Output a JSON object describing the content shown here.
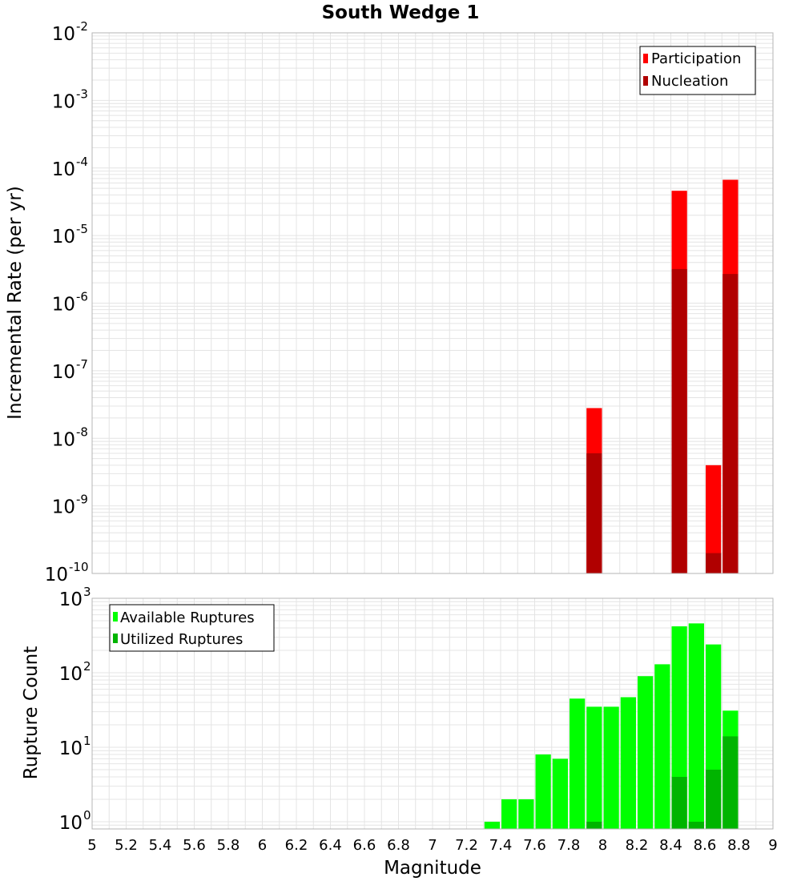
{
  "colors": {
    "participation": "#ff0000",
    "nucleation": "#b00000",
    "available": "#00ff00",
    "utilized": "#00b400",
    "grid": "#e4e4e4",
    "frame": "#b4b4b4"
  },
  "chart_data": [
    {
      "type": "bar",
      "subtype": "overlaid-log-histogram",
      "title": "South Wedge 1",
      "xlabel": "Magnitude",
      "ylabel": "Incremental Rate (per yr)",
      "xlim": [
        5,
        9
      ],
      "ylim": [
        1e-10,
        0.01
      ],
      "yscale": "log",
      "bin_width": 0.1,
      "yticks": [
        {
          "base": "10",
          "exp": "-10",
          "value": 1e-10
        },
        {
          "base": "10",
          "exp": "-9",
          "value": 1e-09
        },
        {
          "base": "10",
          "exp": "-8",
          "value": 1e-08
        },
        {
          "base": "10",
          "exp": "-7",
          "value": 1e-07
        },
        {
          "base": "10",
          "exp": "-6",
          "value": 1e-06
        },
        {
          "base": "10",
          "exp": "-5",
          "value": 1e-05
        },
        {
          "base": "10",
          "exp": "-4",
          "value": 0.0001
        },
        {
          "base": "10",
          "exp": "-3",
          "value": 0.001
        },
        {
          "base": "10",
          "exp": "-2",
          "value": 0.01
        }
      ],
      "legend": {
        "position": "top-right",
        "entries": [
          "Participation",
          "Nucleation"
        ]
      },
      "series": [
        {
          "name": "Participation",
          "color_key": "participation",
          "x": [
            7.95,
            8.45,
            8.65,
            8.75
          ],
          "values": [
            2.8e-08,
            4.6e-05,
            4e-09,
            6.7e-05
          ]
        },
        {
          "name": "Nucleation",
          "color_key": "nucleation",
          "x": [
            7.95,
            8.45,
            8.65,
            8.75
          ],
          "values": [
            6e-09,
            3.2e-06,
            2e-10,
            2.7e-06
          ]
        }
      ]
    },
    {
      "type": "bar",
      "subtype": "overlaid-log-histogram",
      "xlabel": "Magnitude",
      "ylabel": "Rupture Count",
      "xlim": [
        5,
        9
      ],
      "ylim": [
        0.8,
        1000
      ],
      "yscale": "log",
      "bin_width": 0.1,
      "xticks": [
        "5",
        "5.2",
        "5.4",
        "5.6",
        "5.8",
        "6",
        "6.2",
        "6.4",
        "6.6",
        "6.8",
        "7",
        "7.2",
        "7.4",
        "7.6",
        "7.8",
        "8",
        "8.2",
        "8.4",
        "8.6",
        "8.8",
        "9"
      ],
      "yticks": [
        {
          "base": "10",
          "exp": "0",
          "value": 1
        },
        {
          "base": "10",
          "exp": "1",
          "value": 10
        },
        {
          "base": "10",
          "exp": "2",
          "value": 100
        },
        {
          "base": "10",
          "exp": "3",
          "value": 1000
        }
      ],
      "legend": {
        "position": "top-left",
        "entries": [
          "Available Ruptures",
          "Utilized Ruptures"
        ]
      },
      "series": [
        {
          "name": "Available Ruptures",
          "color_key": "available",
          "x": [
            7.35,
            7.45,
            7.55,
            7.65,
            7.75,
            7.85,
            7.95,
            8.05,
            8.15,
            8.25,
            8.35,
            8.45,
            8.55,
            8.65,
            8.75
          ],
          "values": [
            1,
            2,
            2,
            8,
            7,
            45,
            35,
            35,
            47,
            90,
            130,
            420,
            460,
            240,
            31
          ]
        },
        {
          "name": "Utilized Ruptures",
          "color_key": "utilized",
          "x": [
            7.95,
            8.45,
            8.55,
            8.65,
            8.75
          ],
          "values": [
            1,
            4,
            1,
            5,
            14
          ]
        }
      ]
    }
  ]
}
